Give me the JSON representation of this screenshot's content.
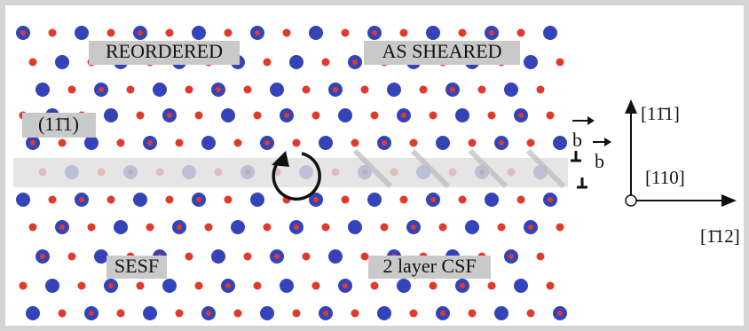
{
  "labels": {
    "reordered": "REORDERED",
    "as_sheared": "AS SHEARED",
    "plane": "(11̄1)",
    "sesf": "SESF",
    "csf": "2 layer CSF"
  },
  "burgers": [
    "b",
    "b"
  ],
  "axes": {
    "up": "[11̄1]",
    "out": "[110]",
    "right": "[1̄12]"
  }
}
